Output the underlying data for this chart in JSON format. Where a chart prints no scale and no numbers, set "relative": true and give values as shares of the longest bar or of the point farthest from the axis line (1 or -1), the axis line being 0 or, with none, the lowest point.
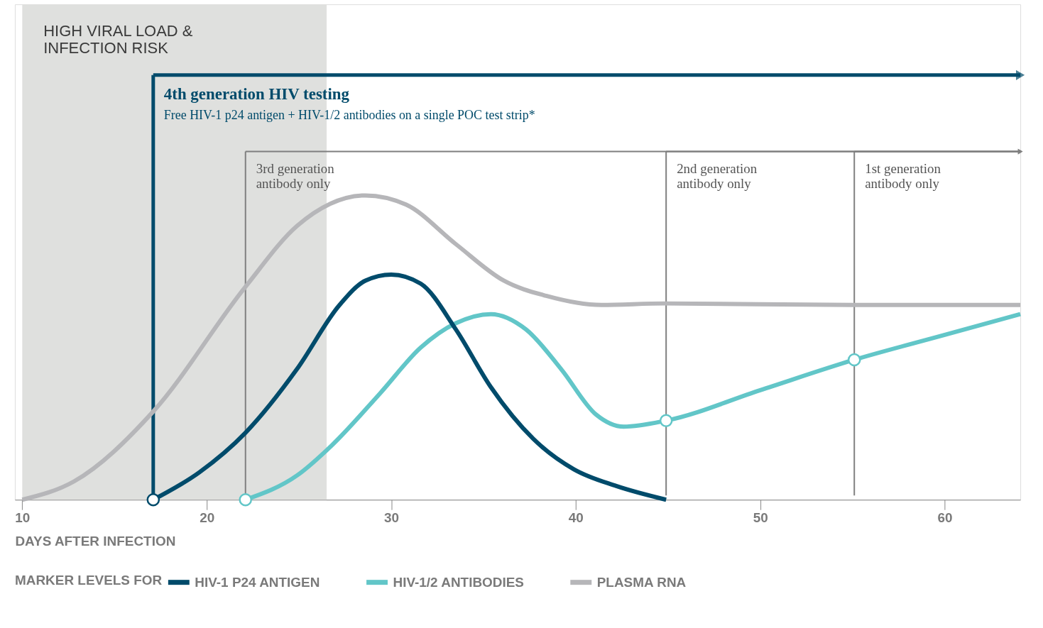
{
  "chart_data": {
    "type": "line",
    "relative": true,
    "xlabel": "DAYS AFTER INFECTION",
    "legend_title": "MARKER LEVELS FOR",
    "legend": "bottom",
    "grid": false,
    "xlim": [
      9.6,
      64.1
    ],
    "xticks": [
      10,
      20,
      30,
      40,
      50,
      60
    ],
    "series": [
      {
        "name": "HIV-1 P24 ANTIGEN",
        "color": "#004b6b",
        "x": [
          17.1,
          19.6,
          22.1,
          24.9,
          27.2,
          28.6,
          30,
          31.6,
          33.5,
          35.4,
          37.7,
          39.9,
          42.2,
          44.9
        ],
        "values": [
          0,
          0.09,
          0.22,
          0.43,
          0.64,
          0.72,
          0.74,
          0.71,
          0.56,
          0.37,
          0.2,
          0.1,
          0.045,
          0
        ]
      },
      {
        "name": "HIV-1/2 ANTIBODIES",
        "color": "#62c6c8",
        "x": [
          22.1,
          24.9,
          26.8,
          29.4,
          31.6,
          33.5,
          35.4,
          37.3,
          39.2,
          41.1,
          42.6,
          44.9,
          50,
          55.1,
          59.9,
          64.1
        ],
        "values": [
          0,
          0.08,
          0.18,
          0.35,
          0.5,
          0.58,
          0.61,
          0.56,
          0.43,
          0.28,
          0.24,
          0.26,
          0.36,
          0.46,
          0.54,
          0.61
        ]
      },
      {
        "name": "PLASMA RNA",
        "color": "#b6b6b9",
        "x": [
          10,
          12.8,
          17.1,
          22.1,
          24.9,
          28.6,
          30.8,
          33.5,
          36.1,
          38.4,
          41.4,
          44.8,
          55,
          64.1
        ],
        "values": [
          0,
          0.06,
          0.29,
          0.7,
          0.9,
          1.0,
          0.97,
          0.84,
          0.72,
          0.67,
          0.64,
          0.645,
          0.64,
          0.64
        ]
      },
      {
        "type": "scatter",
        "color": "#004b6b",
        "x": [
          17.1
        ],
        "values": [
          0
        ]
      },
      {
        "type": "scatter",
        "color": "#62c6c8",
        "x": [
          22.1,
          44.9,
          55.1
        ],
        "values": [
          0,
          0.26,
          0.46
        ]
      }
    ],
    "bands": [
      {
        "axis": "x",
        "from": 10,
        "to": 26.5,
        "label": "HIGH VIRAL LOAD &\nINFECTION RISK",
        "color": "#dfe0de"
      }
    ],
    "ref_lines": [
      {
        "axis": "x",
        "value": 17.1,
        "label": "4th generation HIV testing",
        "color": "#004b6b"
      },
      {
        "axis": "x",
        "value": 22.1,
        "label": "3rd generation\nantibody only",
        "color": "#7f7f7f"
      },
      {
        "axis": "x",
        "value": 44.9,
        "label": "2nd generation\nantibody only",
        "color": "#7f7f7f"
      },
      {
        "axis": "x",
        "value": 55.1,
        "label": "1st generation\nantibody only",
        "color": "#7f7f7f"
      }
    ],
    "annotations": [
      "Free HIV-1 p24 antigen + HIV-1/2 antibodies on a single POC test strip*"
    ]
  }
}
